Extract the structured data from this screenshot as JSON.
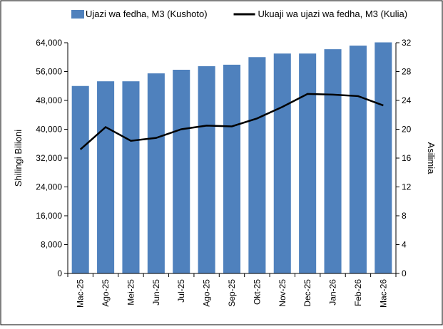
{
  "chart_data": {
    "type": "bar_line",
    "categories": [
      "Mac-25",
      "Ago-25",
      "Mei-25",
      "Jun-25",
      "Jul-25",
      "Ago-25",
      "Sep-25",
      "Okt-25",
      "Nov-25",
      "Dec-25",
      "Jan-26",
      "Feb-26",
      "Mac-26"
    ],
    "series": [
      {
        "name": "Ujazi wa fedha, M3 (Kushoto)",
        "color": "#4f81bd",
        "kind": "bar",
        "values": [
          52000,
          53300,
          53300,
          55500,
          56500,
          57500,
          57900,
          60000,
          61000,
          61000,
          62200,
          63200,
          64100
        ]
      },
      {
        "name": "Ukuaji wa ujazi wa fedha, M3 (Kulia)",
        "color": "#000000",
        "kind": "line",
        "axis": "y2",
        "values": [
          17.2,
          20.3,
          18.4,
          18.8,
          20.0,
          20.5,
          20.4,
          21.5,
          23.1,
          24.9,
          24.8,
          24.6,
          23.3
        ]
      }
    ],
    "ylabel": "Shilingi Bilioni",
    "y2label": "Asilimia",
    "ylim": [
      0,
      64000
    ],
    "yticks": [
      0,
      {
        "value": 8000,
        "label": "8,000"
      },
      {
        "value": 16000,
        "label": "16,000"
      },
      {
        "value": 24000,
        "label": "24,000"
      },
      {
        "value": 32000,
        "label": "32,000"
      },
      {
        "value": 40000,
        "label": "40,000"
      },
      {
        "value": 48000,
        "label": "48,000"
      },
      {
        "value": 56000,
        "label": "56,000"
      },
      {
        "value": 64000,
        "label": "64,000"
      }
    ],
    "y2lim": [
      0,
      32
    ],
    "y2ticks": [
      0,
      4,
      8,
      12,
      16,
      20,
      24,
      28,
      32
    ],
    "legend": "top"
  }
}
